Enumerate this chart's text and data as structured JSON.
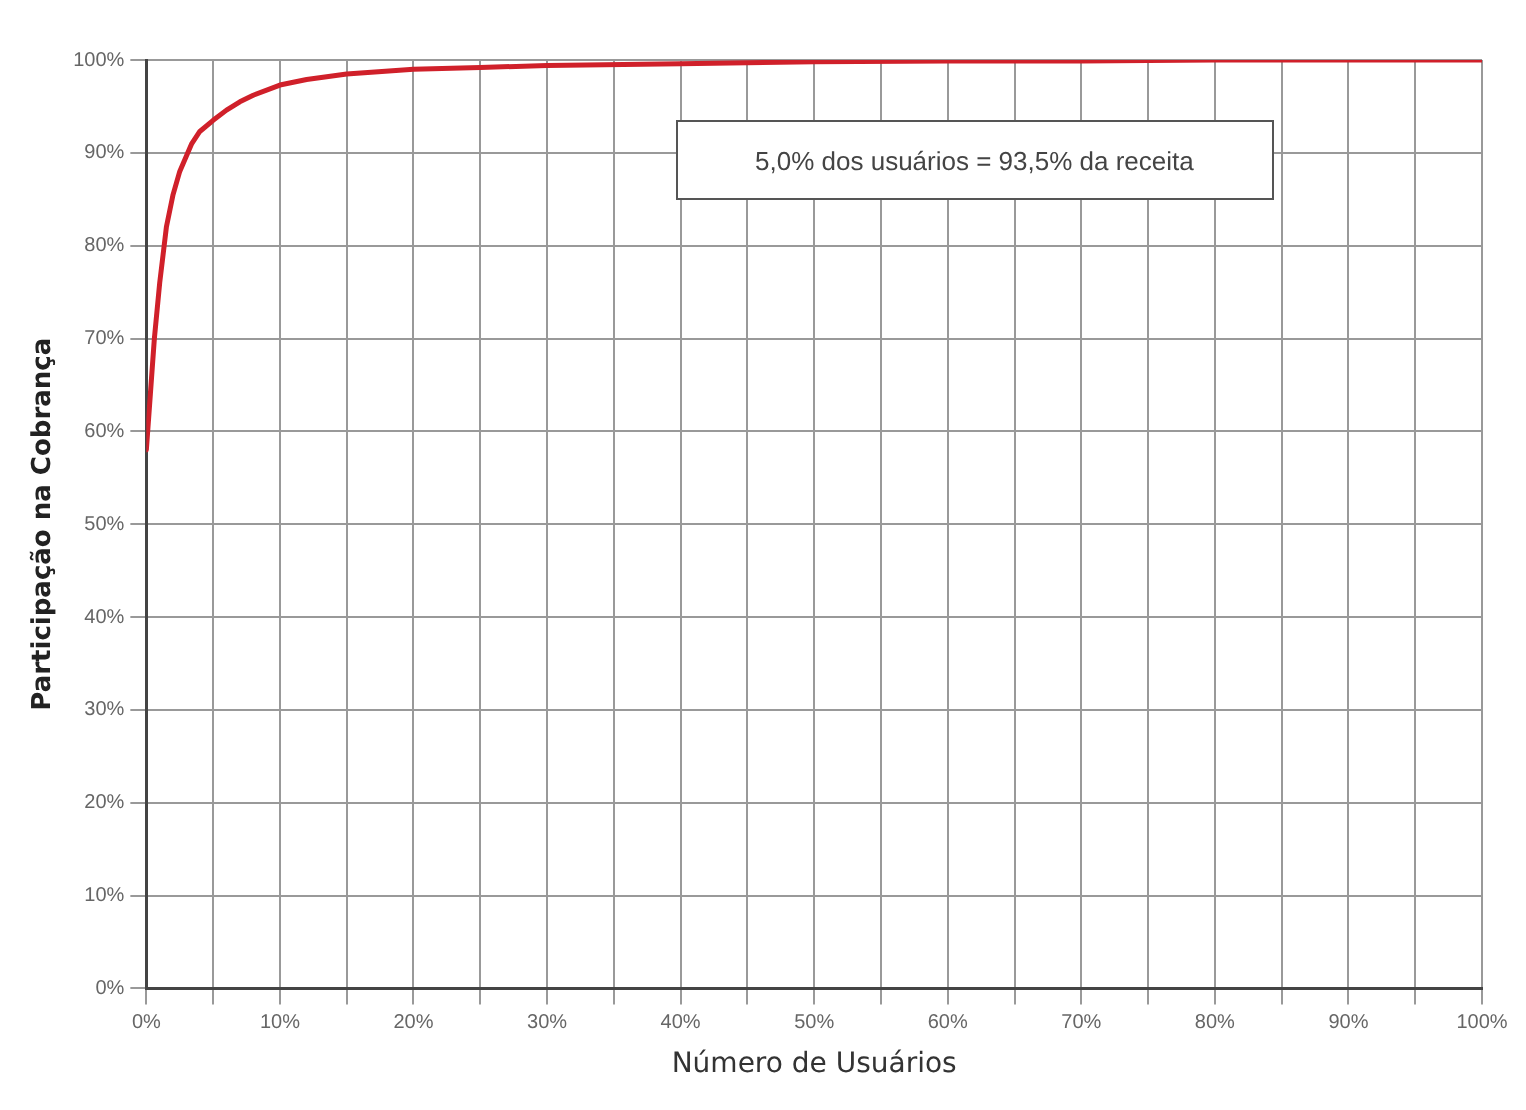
{
  "chart_data": {
    "type": "line",
    "xlabel": "Número de Usuários",
    "ylabel": "Participação na Cobrança",
    "x": [
      0,
      0.3,
      0.6,
      1,
      1.5,
      2,
      2.5,
      3.4,
      4,
      5,
      6,
      7,
      8,
      10,
      12,
      15,
      20,
      25,
      30,
      40,
      50,
      60,
      70,
      80,
      90,
      100
    ],
    "series": [
      {
        "color": "#d0202a",
        "values": [
          58,
          64,
          70,
          76,
          82,
          85.5,
          88,
          91,
          92.3,
          93.5,
          94.6,
          95.5,
          96.2,
          97.3,
          97.9,
          98.5,
          99,
          99.2,
          99.4,
          99.6,
          99.8,
          99.9,
          99.9,
          100,
          100,
          100
        ]
      }
    ],
    "xlim": [
      0,
      100
    ],
    "xticks": [
      {
        "value": 0,
        "label": "0%"
      },
      {
        "value": 5,
        "label": null
      },
      {
        "value": 10,
        "label": "10%"
      },
      {
        "value": 15,
        "label": null
      },
      {
        "value": 20,
        "label": "20%"
      },
      {
        "value": 25,
        "label": null
      },
      {
        "value": 30,
        "label": "30%"
      },
      {
        "value": 35,
        "label": null
      },
      {
        "value": 40,
        "label": "40%"
      },
      {
        "value": 45,
        "label": null
      },
      {
        "value": 50,
        "label": "50%"
      },
      {
        "value": 55,
        "label": null
      },
      {
        "value": 60,
        "label": "60%"
      },
      {
        "value": 65,
        "label": null
      },
      {
        "value": 70,
        "label": "70%"
      },
      {
        "value": 75,
        "label": null
      },
      {
        "value": 80,
        "label": "80%"
      },
      {
        "value": 85,
        "label": null
      },
      {
        "value": 90,
        "label": "90%"
      },
      {
        "value": 95,
        "label": null
      },
      {
        "value": 100,
        "label": "100%"
      }
    ],
    "ylim": [
      0,
      100
    ],
    "yticks": [
      {
        "value": 0,
        "label": "0%"
      },
      {
        "value": 10,
        "label": "10%"
      },
      {
        "value": 20,
        "label": "20%"
      },
      {
        "value": 30,
        "label": "30%"
      },
      {
        "value": 40,
        "label": "40%"
      },
      {
        "value": 50,
        "label": "50%"
      },
      {
        "value": 60,
        "label": "60%"
      },
      {
        "value": 70,
        "label": "70%"
      },
      {
        "value": 80,
        "label": "80%"
      },
      {
        "value": 90,
        "label": "90%"
      },
      {
        "value": 100,
        "label": "100%"
      }
    ],
    "annotations": [
      "5,0% dos usuários = 93,5% da receita"
    ],
    "grid": true,
    "legend": false,
    "marker": "none",
    "line_style": "solid"
  }
}
